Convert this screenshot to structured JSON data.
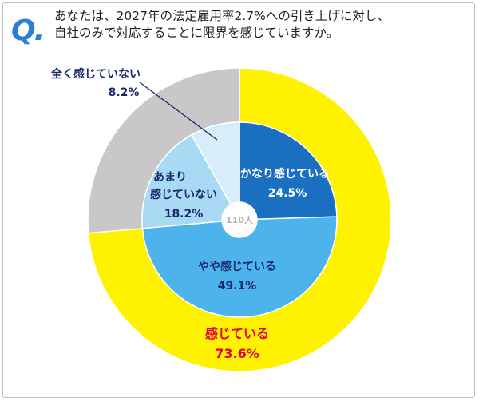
{
  "question": {
    "mark": "Q.",
    "line1": "あなたは、2027年の法定雇用率2.7%への引き上げに対し、",
    "line2": "自社のみで対応することに限界を感じていますか。"
  },
  "center_label": "110人",
  "chart_data": {
    "type": "pie",
    "variant": "donut",
    "title": "",
    "total": "110人",
    "outer": [
      {
        "label": "感じている",
        "value": 73.6,
        "value_label": "73.6%",
        "color": "#fff200",
        "text_color": "#e5003a"
      },
      {
        "label": "",
        "value": 26.4,
        "value_label": "",
        "color": "#c8c8c8",
        "text_color": "#1a2a6c"
      }
    ],
    "inner": [
      {
        "label": "かなり感じている",
        "value": 24.5,
        "value_label": "24.5%",
        "color": "#1a6fc0",
        "text_color": "#ffffff"
      },
      {
        "label": "やや感じている",
        "value": 49.1,
        "value_label": "49.1%",
        "color": "#4db3ec",
        "text_color": "#1a2a6c"
      },
      {
        "label": "あまり感じていない",
        "label_lines": [
          "あまり",
          "感じていない"
        ],
        "value": 18.2,
        "value_label": "18.2%",
        "color": "#a9daf4",
        "text_color": "#1a2a6c"
      },
      {
        "label": "全く感じていない",
        "value": 8.2,
        "value_label": "8.2%",
        "color": "#d7eefa",
        "text_color": "#1a2a6c"
      }
    ]
  }
}
